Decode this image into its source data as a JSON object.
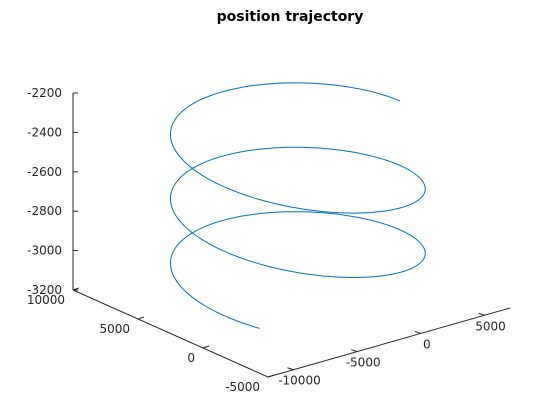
{
  "chart_data": {
    "type": "line",
    "projection": "3d",
    "title": "position trajectory",
    "grid": false,
    "xlabel": "",
    "ylabel": "",
    "zlabel": "",
    "axes": {
      "x": {
        "ticks": [
          -10000,
          -5000,
          0,
          5000
        ],
        "tick_labels": [
          "-10000",
          "-5000",
          "0",
          "5000"
        ]
      },
      "y": {
        "ticks": [
          -5000,
          0,
          5000,
          10000
        ],
        "tick_labels": [
          "-5000",
          "0",
          "5000",
          "10000"
        ]
      },
      "z": {
        "ticks": [
          -3200,
          -3000,
          -2800,
          -2600,
          -2400,
          -2200
        ],
        "tick_labels": [
          "-3200",
          "-3000",
          "-2800",
          "-2600",
          "-2400",
          "-2200"
        ],
        "range": [
          -3200,
          -2200
        ]
      }
    },
    "series": [
      {
        "line_style": "spiral",
        "color": "#0072bd",
        "center_xy": [
          -2000,
          2500
        ],
        "radius": 7000,
        "z_range": [
          -3150,
          -2300
        ],
        "turns": 2.6
      }
    ]
  }
}
